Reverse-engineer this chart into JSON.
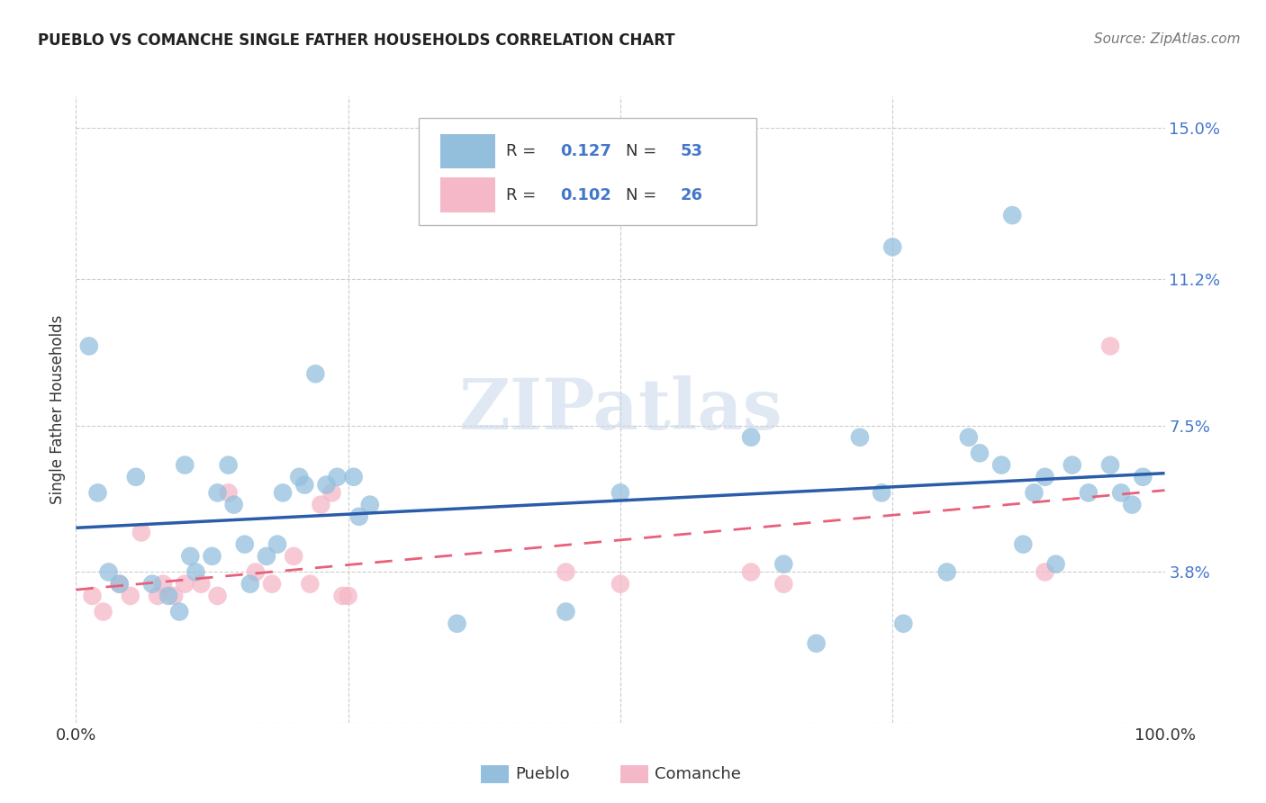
{
  "title": "PUEBLO VS COMANCHE SINGLE FATHER HOUSEHOLDS CORRELATION CHART",
  "source": "Source: ZipAtlas.com",
  "ylabel": "Single Father Households",
  "xlim": [
    0,
    100
  ],
  "ylim": [
    0,
    15.8
  ],
  "ytick_vals": [
    0,
    3.8,
    7.5,
    11.2,
    15.0
  ],
  "ytick_labels": [
    "",
    "3.8%",
    "7.5%",
    "11.2%",
    "15.0%"
  ],
  "xtick_vals": [
    0,
    25,
    50,
    75,
    100
  ],
  "xtick_labels": [
    "0.0%",
    "",
    "",
    "",
    "100.0%"
  ],
  "grid_color": "#cccccc",
  "background_color": "#ffffff",
  "pueblo_color": "#93bfdd",
  "comanche_color": "#f5b8c8",
  "pueblo_line_color": "#2a5caa",
  "comanche_line_color": "#e8607a",
  "pueblo_R": 0.127,
  "pueblo_N": 53,
  "comanche_R": 0.102,
  "comanche_N": 26,
  "pueblo_x": [
    1.2,
    2.0,
    3.0,
    4.0,
    5.5,
    7.0,
    8.5,
    9.5,
    10.5,
    11.0,
    12.5,
    13.0,
    14.5,
    15.5,
    16.0,
    17.5,
    19.0,
    20.5,
    22.0,
    24.0,
    26.0,
    23.0,
    27.0,
    10.0,
    14.0,
    18.5,
    21.0,
    25.5,
    35.0,
    45.0,
    50.0,
    62.0,
    65.0,
    68.0,
    72.0,
    74.0,
    76.0,
    80.0,
    83.0,
    85.0,
    87.0,
    88.0,
    89.0,
    90.0,
    91.5,
    93.0,
    95.0,
    96.0,
    97.0,
    98.0,
    75.0,
    82.0,
    86.0
  ],
  "pueblo_y": [
    9.5,
    5.8,
    3.8,
    3.5,
    6.2,
    3.5,
    3.2,
    2.8,
    4.2,
    3.8,
    4.2,
    5.8,
    5.5,
    4.5,
    3.5,
    4.2,
    5.8,
    6.2,
    8.8,
    6.2,
    5.2,
    6.0,
    5.5,
    6.5,
    6.5,
    4.5,
    6.0,
    6.2,
    2.5,
    2.8,
    5.8,
    7.2,
    4.0,
    2.0,
    7.2,
    5.8,
    2.5,
    3.8,
    6.8,
    6.5,
    4.5,
    5.8,
    6.2,
    4.0,
    6.5,
    5.8,
    6.5,
    5.8,
    5.5,
    6.2,
    12.0,
    7.2,
    12.8
  ],
  "comanche_x": [
    1.5,
    2.5,
    4.0,
    5.0,
    6.0,
    7.5,
    8.0,
    9.0,
    10.0,
    11.5,
    13.0,
    14.0,
    16.5,
    18.0,
    20.0,
    21.5,
    23.5,
    25.0,
    22.5,
    24.5,
    45.0,
    50.0,
    62.0,
    65.0,
    89.0,
    95.0
  ],
  "comanche_y": [
    3.2,
    2.8,
    3.5,
    3.2,
    4.8,
    3.2,
    3.5,
    3.2,
    3.5,
    3.5,
    3.2,
    5.8,
    3.8,
    3.5,
    4.2,
    3.5,
    5.8,
    3.2,
    5.5,
    3.2,
    3.8,
    3.5,
    3.8,
    3.5,
    3.8,
    9.5
  ],
  "legend_pueblo_label": "Pueblo",
  "legend_comanche_label": "Comanche",
  "accent_color": "#4477cc",
  "label_color": "#555555"
}
